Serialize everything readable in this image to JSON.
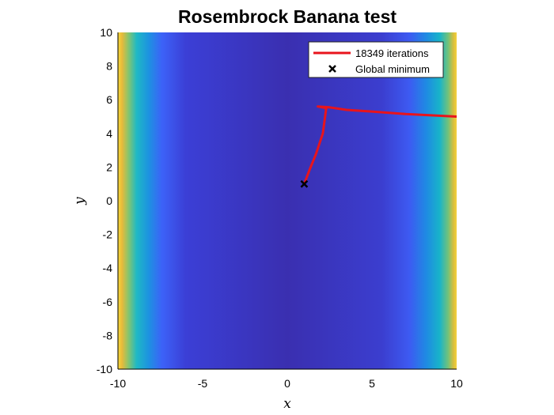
{
  "chart_data": {
    "type": "heatmap",
    "title": "Rosembrock Banana test",
    "xlabel": "x",
    "ylabel": "y",
    "xlim": [
      -10,
      10
    ],
    "ylim": [
      -10,
      10
    ],
    "xticks": [
      -10,
      -5,
      0,
      5,
      10
    ],
    "yticks": [
      -10,
      -8,
      -6,
      -4,
      -2,
      0,
      2,
      4,
      6,
      8,
      10
    ],
    "grid": false,
    "legend_position": "top-right",
    "colormap": "parula",
    "colors": {
      "path": "#e8141c",
      "marker": "#000000"
    },
    "series": [
      {
        "name": "18349 iterations",
        "type": "line",
        "x": [
          10,
          7,
          5,
          3.5,
          2.5,
          1.8,
          2.3,
          2.1,
          1.7,
          1.3,
          1.0
        ],
        "y": [
          5.0,
          5.15,
          5.3,
          5.4,
          5.55,
          5.6,
          5.5,
          4.0,
          2.8,
          1.8,
          1.0
        ]
      },
      {
        "name": "Global minimum",
        "type": "scatter",
        "marker": "x",
        "x": [
          1
        ],
        "y": [
          1
        ]
      }
    ]
  }
}
